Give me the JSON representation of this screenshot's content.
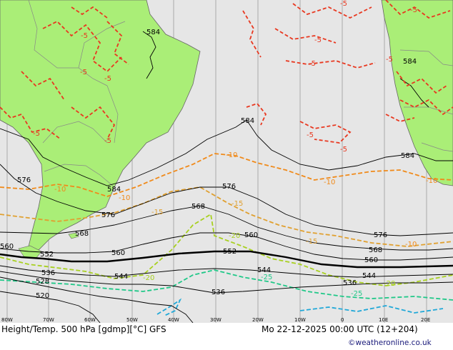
{
  "title": "Height/Temp. 500 hPa [gdmp][°C] GFS",
  "datetime": "Mo 22-12-2025 00:00 UTC (12+204)",
  "credit": "©weatheronline.co.uk",
  "colors": {
    "sea": "#e6e6e6",
    "land": "#aaee77",
    "height_contour": "#000000",
    "temp_warm": "#e83820",
    "temp_minus10": "#f08a1a",
    "temp_minus15": "#e0a030",
    "temp_minus20": "#a8d020",
    "temp_minus25": "#20c888",
    "temp_minus30": "#20a8d8"
  },
  "longitude_ticks": [
    "80W",
    "70W",
    "60W",
    "50W",
    "40W",
    "30W",
    "20W",
    "10W",
    "0",
    "10E",
    "20E"
  ],
  "height_labels": {
    "h584_a": "584",
    "h584_b": "584",
    "h584_c": "584",
    "h584_d": "584",
    "h584_e": "584",
    "h576_a": "576",
    "h576_b": "576",
    "h576_c": "576",
    "h576_d": "576",
    "h568_a": "568",
    "h568_b": "568",
    "h568_c": "568",
    "h560_a": "560",
    "h560_b": "560",
    "h560_c": "560",
    "h560_d": "560",
    "h552_a": "552",
    "h552_b": "552",
    "h544_a": "544",
    "h544_b": "544",
    "h544_c": "544",
    "h536_a": "536",
    "h536_b": "536",
    "h536_c": "536",
    "h528": "528",
    "h520": "520"
  },
  "temp_labels": {
    "t5a": "-5",
    "t5b": "-5",
    "t5c": "-5",
    "t5d": "-5",
    "t5e": "-5",
    "t5f": "-5",
    "t5g": "-5",
    "t5h": "-5",
    "t5i": "-5",
    "t5j": "-5",
    "t5k": "-5",
    "t5l": "-5",
    "t10a": "-10",
    "t10b": "-10",
    "t10c": "-10",
    "t10d": "-10",
    "t10e": "-10",
    "t10f": "-10",
    "t15a": "-15",
    "t15b": "-15",
    "t15c": "-15",
    "t20a": "-20",
    "t20b": "-20",
    "t20c": "-20",
    "t25a": "-25",
    "t25b": "-25"
  }
}
